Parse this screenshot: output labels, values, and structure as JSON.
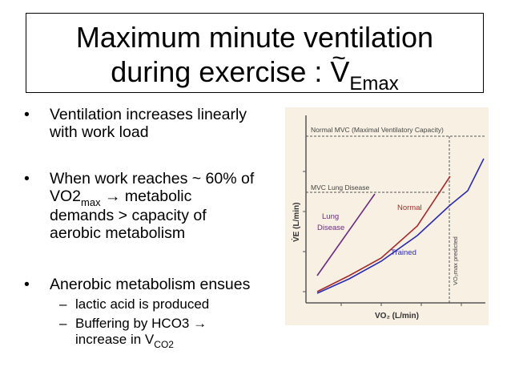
{
  "title": {
    "line1": "Maximum minute ventilation",
    "line2_prefix": "during exercise : ",
    "symbol": "V",
    "symbol_mark": "~",
    "symbol_sub": "Emax"
  },
  "bullets": [
    {
      "lines": [
        "Ventilation increases linearly",
        "with work load"
      ]
    },
    {
      "line1_pre": "When work reaches ~ 60% of",
      "line2_pre": "VO2",
      "line2_sub": "max",
      "line2_post": " → metabolic",
      "line3": "demands > capacity of",
      "line4": "aerobic metabolism"
    },
    {
      "lines": [
        "Anerobic metabolism ensues"
      ]
    }
  ],
  "sub_bullets": [
    {
      "text": "lactic acid is produced"
    },
    {
      "line1": "Buffering by HCO3 →",
      "line2_pre": "increase in V",
      "line2_sub": "CO2"
    }
  ],
  "chart_data": {
    "type": "line",
    "xlabel": "VO₂  (L/min)",
    "ylabel": "V̇E  (L/min)",
    "reference_lines": [
      {
        "label": "Normal MVC (Maximal Ventilatory Capacity)",
        "orientation": "horizontal"
      },
      {
        "label": "MVC Lung Disease",
        "orientation": "horizontal"
      },
      {
        "label": "VO₂max predicted",
        "orientation": "vertical"
      }
    ],
    "series": [
      {
        "name": "Lung Disease",
        "color": "#6b2a7e"
      },
      {
        "name": "Normal",
        "color": "#a52a2a"
      },
      {
        "name": "Trained",
        "color": "#2a2ab0"
      }
    ]
  }
}
